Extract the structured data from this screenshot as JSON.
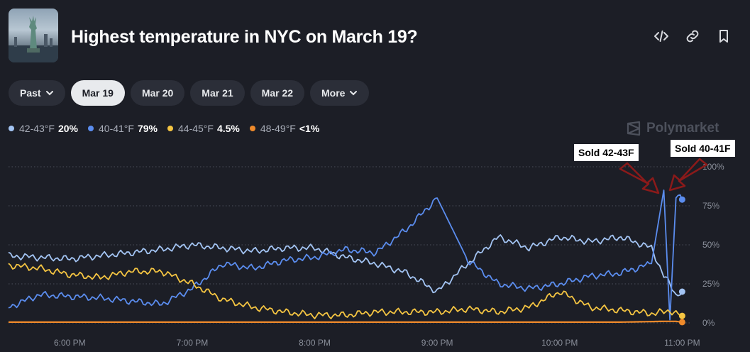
{
  "header": {
    "title": "Highest temperature in NYC on March 19?",
    "icons": [
      "code-embed-icon",
      "link-icon",
      "bookmark-icon"
    ]
  },
  "tabs": [
    {
      "label": "Past",
      "dropdown": true,
      "active": false
    },
    {
      "label": "Mar 19",
      "dropdown": false,
      "active": true
    },
    {
      "label": "Mar 20",
      "dropdown": false,
      "active": false
    },
    {
      "label": "Mar 21",
      "dropdown": false,
      "active": false
    },
    {
      "label": "Mar 22",
      "dropdown": false,
      "active": false
    },
    {
      "label": "More",
      "dropdown": true,
      "active": false
    }
  ],
  "legend": [
    {
      "name": "42-43°F",
      "value": "20%",
      "color": "#a3c4f3"
    },
    {
      "name": "40-41°F",
      "value": "79%",
      "color": "#5b8def"
    },
    {
      "name": "44-45°F",
      "value": "4.5%",
      "color": "#f5c542"
    },
    {
      "name": "48-49°F",
      "value": "<1%",
      "color": "#ef8a2b"
    }
  ],
  "watermark": "Polymarket",
  "annotations": [
    {
      "text": "Sold 42-43F"
    },
    {
      "text": "Sold 40-41F"
    }
  ],
  "chart_data": {
    "type": "line",
    "x_ticks": [
      "6:00 PM",
      "7:00 PM",
      "8:00 PM",
      "9:00 PM",
      "10:00 PM",
      "11:00 PM"
    ],
    "y_ticks": [
      "0%",
      "25%",
      "50%",
      "75%",
      "100%"
    ],
    "ylim": [
      0,
      100
    ],
    "xlim": [
      17.5,
      23.05
    ],
    "grid": true,
    "series": [
      {
        "name": "42-43°F",
        "color": "#a3c4f3",
        "x": [
          17.5,
          17.75,
          18.0,
          18.25,
          18.5,
          18.75,
          19.0,
          19.25,
          19.5,
          19.75,
          20.0,
          20.25,
          20.5,
          20.75,
          21.0,
          21.25,
          21.5,
          21.75,
          22.0,
          22.25,
          22.5,
          22.75,
          22.85,
          22.9,
          22.95,
          23.0
        ],
        "y": [
          43,
          42,
          41,
          43,
          45,
          47,
          50,
          48,
          46,
          48,
          48,
          42,
          38,
          32,
          20,
          38,
          55,
          48,
          55,
          52,
          55,
          48,
          30,
          25,
          18,
          20
        ]
      },
      {
        "name": "40-41°F",
        "color": "#5b8def",
        "x": [
          17.5,
          17.75,
          18.0,
          18.25,
          18.5,
          18.75,
          19.0,
          19.25,
          19.5,
          19.75,
          20.0,
          20.25,
          20.5,
          20.75,
          21.0,
          21.25,
          21.5,
          21.75,
          22.0,
          22.25,
          22.5,
          22.75,
          22.85,
          22.9,
          22.95,
          23.0
        ],
        "y": [
          10,
          18,
          17,
          16,
          14,
          12,
          22,
          38,
          35,
          40,
          42,
          47,
          45,
          60,
          80,
          40,
          25,
          22,
          25,
          30,
          32,
          38,
          85,
          2,
          82,
          79
        ]
      },
      {
        "name": "44-45°F",
        "color": "#f5c542",
        "x": [
          17.5,
          17.75,
          18.0,
          18.25,
          18.5,
          18.75,
          19.0,
          19.25,
          19.5,
          19.75,
          20.0,
          20.25,
          20.5,
          20.75,
          21.0,
          21.25,
          21.5,
          21.75,
          22.0,
          22.25,
          22.5,
          22.75,
          22.85,
          22.9,
          22.95,
          23.0
        ],
        "y": [
          37,
          35,
          31,
          29,
          33,
          33,
          25,
          15,
          10,
          7,
          5,
          5,
          7,
          7,
          7,
          9,
          7,
          10,
          20,
          10,
          8,
          6,
          7,
          8,
          6,
          4.5
        ]
      },
      {
        "name": "48-49°F",
        "color": "#ef8a2b",
        "x": [
          17.5,
          18.0,
          18.5,
          19.0,
          19.5,
          20.0,
          20.5,
          21.0,
          21.5,
          22.0,
          22.5,
          22.85,
          22.95,
          23.0
        ],
        "y": [
          0.5,
          0.5,
          0.5,
          0.5,
          0.5,
          0.5,
          0.5,
          0.5,
          0.5,
          0.5,
          0.5,
          1,
          1,
          0.5
        ]
      }
    ]
  }
}
